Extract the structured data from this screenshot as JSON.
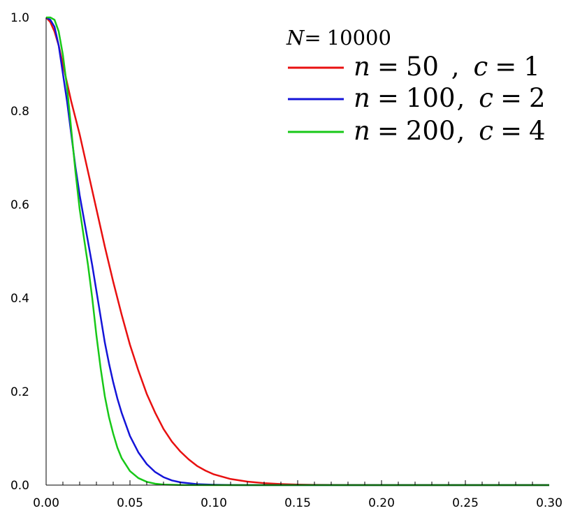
{
  "chart_data": {
    "type": "line",
    "title": "",
    "xlabel": "",
    "ylabel": "",
    "xlim": [
      0,
      0.3
    ],
    "ylim": [
      0,
      1.0
    ],
    "xticks": [
      "0.00",
      "0.05",
      "0.10",
      "0.15",
      "0.20",
      "0.25",
      "0.30"
    ],
    "yticks": [
      "0.0",
      "0.2",
      "0.4",
      "0.6",
      "0.8",
      "1.0"
    ],
    "grid": false,
    "legend_position": "top-right",
    "legend": {
      "title": {
        "var": "N",
        "op": "=",
        "value": "10000"
      },
      "entries": [
        {
          "var1": "n",
          "val1": "50",
          "sep": "  ,",
          "var2": "c",
          "val2": "1"
        },
        {
          "var1": "n",
          "val1": "100",
          "sep": ",",
          "var2": "c",
          "val2": "2"
        },
        {
          "var1": "n",
          "val1": "200",
          "sep": ",",
          "var2": "c",
          "val2": "4"
        }
      ]
    },
    "series": [
      {
        "color": "#e81010",
        "x": [
          0,
          0.0025,
          0.005,
          0.0075,
          0.01,
          0.0125,
          0.015,
          0.0175,
          0.02,
          0.025,
          0.03,
          0.035,
          0.04,
          0.045,
          0.05,
          0.055,
          0.06,
          0.065,
          0.07,
          0.075,
          0.08,
          0.085,
          0.09,
          0.095,
          0.1,
          0.11,
          0.12,
          0.13,
          0.14,
          0.15,
          0.16,
          0.17,
          0.18,
          0.2,
          0.25,
          0.3
        ],
        "y": [
          1.0,
          0.99,
          0.97,
          0.94,
          0.9,
          0.86,
          0.82,
          0.785,
          0.75,
          0.67,
          0.59,
          0.51,
          0.435,
          0.365,
          0.3,
          0.245,
          0.195,
          0.155,
          0.12,
          0.093,
          0.072,
          0.055,
          0.041,
          0.031,
          0.023,
          0.013,
          0.0075,
          0.0042,
          0.0023,
          0.0012,
          0.0006,
          0.0003,
          0.00015,
          0.0,
          0.0,
          0.0
        ]
      },
      {
        "color": "#1414d8",
        "x": [
          0,
          0.0025,
          0.005,
          0.0075,
          0.01,
          0.0125,
          0.015,
          0.0175,
          0.02,
          0.0225,
          0.025,
          0.0275,
          0.03,
          0.0325,
          0.035,
          0.0375,
          0.04,
          0.0425,
          0.045,
          0.05,
          0.055,
          0.06,
          0.065,
          0.07,
          0.075,
          0.08,
          0.09,
          0.1,
          0.11,
          0.12,
          0.15,
          0.2,
          0.25,
          0.3
        ],
        "y": [
          1.0,
          0.995,
          0.98,
          0.94,
          0.88,
          0.82,
          0.75,
          0.68,
          0.62,
          0.57,
          0.52,
          0.47,
          0.415,
          0.36,
          0.305,
          0.26,
          0.22,
          0.185,
          0.155,
          0.105,
          0.07,
          0.045,
          0.028,
          0.017,
          0.01,
          0.006,
          0.002,
          0.0007,
          0.0002,
          0.0,
          0.0,
          0.0,
          0.0,
          0.0
        ]
      },
      {
        "color": "#18c818",
        "x": [
          0,
          0.0025,
          0.005,
          0.0075,
          0.01,
          0.0125,
          0.015,
          0.0175,
          0.02,
          0.0225,
          0.025,
          0.0275,
          0.03,
          0.0325,
          0.035,
          0.0375,
          0.04,
          0.0425,
          0.045,
          0.05,
          0.055,
          0.06,
          0.065,
          0.07,
          0.08,
          0.1,
          0.15,
          0.2,
          0.25,
          0.3
        ],
        "y": [
          1.0,
          1.0,
          0.995,
          0.97,
          0.92,
          0.85,
          0.76,
          0.67,
          0.59,
          0.53,
          0.47,
          0.4,
          0.32,
          0.25,
          0.19,
          0.145,
          0.11,
          0.08,
          0.058,
          0.03,
          0.015,
          0.007,
          0.003,
          0.0012,
          0.0002,
          0.0,
          0.0,
          0.0,
          0.0,
          0.0
        ]
      }
    ]
  }
}
